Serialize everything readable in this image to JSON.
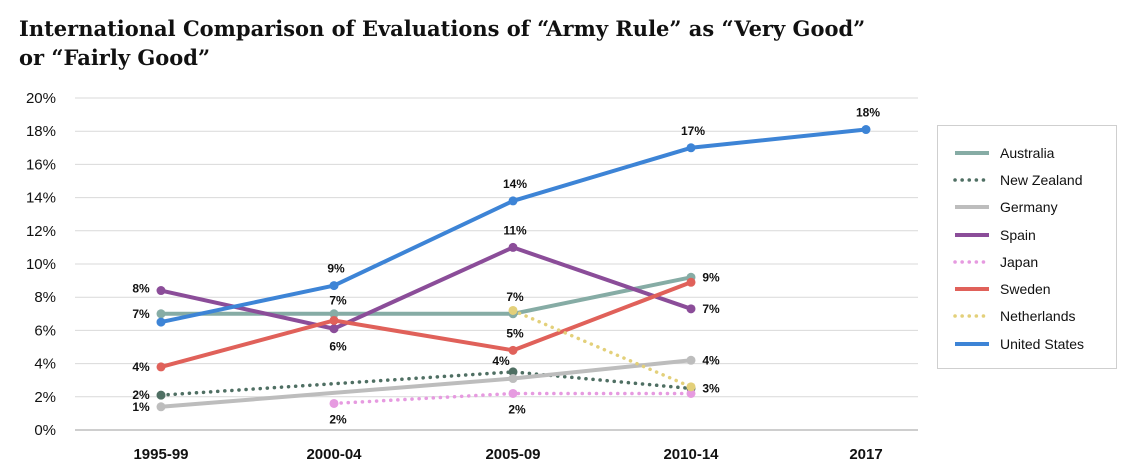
{
  "title": "International Comparison of Evaluations of “Army Rule” as “Very Good” or “Fairly Good”",
  "chart_data": {
    "type": "line",
    "title": "International Comparison of Evaluations of “Army Rule” as “Very Good” or “Fairly Good”",
    "categories": [
      "1995-99",
      "2000-04",
      "2005-09",
      "2010-14",
      "2017"
    ],
    "ylim": [
      0,
      20
    ],
    "ytick_labels": [
      "0%",
      "2%",
      "4%",
      "6%",
      "8%",
      "10%",
      "12%",
      "14%",
      "16%",
      "18%",
      "20%"
    ],
    "grid": "horizontal",
    "legend_position": "right",
    "series": [
      {
        "name": "Australia",
        "color": "#86aca5",
        "style": "solid",
        "values": [
          7,
          7,
          7,
          9.2,
          null
        ],
        "labels": [
          "7%",
          null,
          "7%",
          "9%",
          null
        ]
      },
      {
        "name": "New Zealand",
        "color": "#4f6f63",
        "style": "dotted",
        "values": [
          2.1,
          null,
          3.5,
          2.5,
          null
        ],
        "labels": [
          "2%",
          null,
          "4%",
          "3%",
          null
        ]
      },
      {
        "name": "Germany",
        "color": "#bdbdbd",
        "style": "solid",
        "values": [
          1.4,
          null,
          3.1,
          4.2,
          null
        ],
        "labels": [
          "1%",
          null,
          null,
          "4%",
          null
        ]
      },
      {
        "name": "Spain",
        "color": "#8b4d99",
        "style": "solid",
        "values": [
          8.4,
          6.1,
          11,
          7.3,
          null
        ],
        "labels": [
          "8%",
          "6%",
          "11%",
          "7%",
          null
        ]
      },
      {
        "name": "Japan",
        "color": "#e69ae0",
        "style": "dotted",
        "values": [
          null,
          1.6,
          2.2,
          2.2,
          null
        ],
        "labels": [
          null,
          "2%",
          "2%",
          null,
          null
        ]
      },
      {
        "name": "Sweden",
        "color": "#e0615a",
        "style": "solid",
        "values": [
          3.8,
          6.6,
          4.8,
          8.9,
          null
        ],
        "labels": [
          "4%",
          "7%",
          "5%",
          null,
          null
        ]
      },
      {
        "name": "Netherlands",
        "color": "#e3d07a",
        "style": "dotted",
        "values": [
          null,
          null,
          7.2,
          2.6,
          null
        ],
        "labels": [
          null,
          null,
          null,
          null,
          null
        ]
      },
      {
        "name": "United States",
        "color": "#3d84d6",
        "style": "solid",
        "values": [
          6.5,
          8.7,
          13.8,
          17,
          18.1
        ],
        "labels": [
          null,
          "9%",
          "14%",
          "17%",
          "18%"
        ]
      }
    ]
  }
}
